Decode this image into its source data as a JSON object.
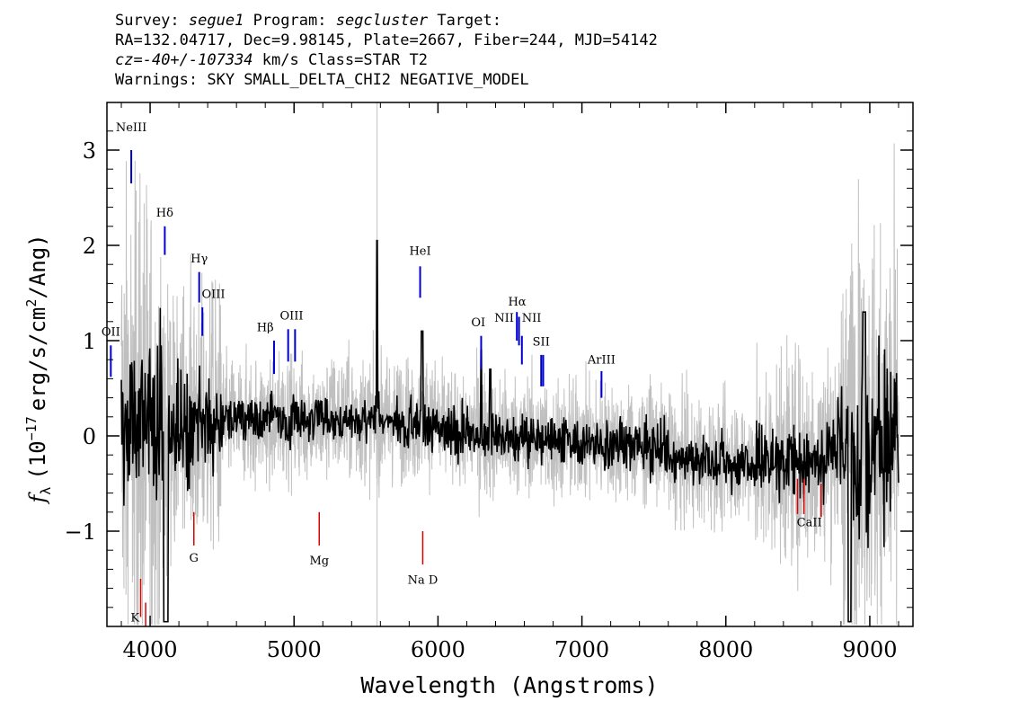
{
  "header": {
    "survey_label": "Survey:",
    "survey": "segue1",
    "program_label": "Program:",
    "program": "segcluster",
    "target_label": "Target:",
    "line2": "RA=132.04717, Dec=9.98145, Plate=2667, Fiber=244, MJD=54142",
    "cz_label": "cz=",
    "cz_value": "-40+/-107334",
    "cz_tail": " km/s Class=STAR T2",
    "warnings": "Warnings: SKY SMALL_DELTA_CHI2 NEGATIVE_MODEL"
  },
  "chart_data": {
    "type": "line",
    "xlabel": "Wavelength (Angstroms)",
    "ylabel_prefix": "f",
    "ylabel_sub": "λ",
    "ylabel_main": "(10",
    "ylabel_exp": "−17",
    "ylabel_rest": "erg/s/cm",
    "ylabel_exp2": "2",
    "ylabel_end": "/Ang)",
    "xlim": [
      3700,
      9300
    ],
    "ylim": [
      -2.0,
      3.5
    ],
    "x_ticks": [
      4000,
      5000,
      6000,
      7000,
      8000,
      9000
    ],
    "x_tick_labels": [
      "4000",
      "5000",
      "6000",
      "7000",
      "8000",
      "9000"
    ],
    "y_ticks": [
      -1,
      0,
      1,
      2,
      3
    ],
    "y_tick_labels": [
      "−1",
      "0",
      "1",
      "2",
      "3"
    ],
    "grid": false,
    "series": [
      {
        "color": "#000000",
        "x_start": 3800,
        "x_end": 9200,
        "y_shape": "flux"
      },
      {
        "color": "#c0c0c0",
        "x_start": 3800,
        "x_end": 9200,
        "y_shape": "error"
      }
    ],
    "line_colors": {
      "flux": "#000000",
      "error": "#c0c0c0",
      "emission": "#0000cc",
      "absorption": "#dd0000"
    },
    "emission_lines": [
      {
        "label": "NeIII",
        "x": 3869
      },
      {
        "label": "OII",
        "x": 3727
      },
      {
        "label": "Hδ",
        "x": 4102
      },
      {
        "label": "Hγ",
        "x": 4341
      },
      {
        "label": "OIII",
        "x": 4363
      },
      {
        "label": "Hβ",
        "x": 4861
      },
      {
        "label": "OIII",
        "x": 4959
      },
      {
        "label": "OIII",
        "x": 5007
      },
      {
        "label": "HeI",
        "x": 5876
      },
      {
        "label": "OI",
        "x": 6300
      },
      {
        "label": "NII",
        "x": 6548
      },
      {
        "label": "Hα",
        "x": 6563
      },
      {
        "label": "NII",
        "x": 6583
      },
      {
        "label": "SII",
        "x": 6717
      },
      {
        "label": "SII",
        "x": 6731
      },
      {
        "label": "ArIII",
        "x": 7136
      }
    ],
    "absorption_lines": [
      {
        "label": "K",
        "x": 3934
      },
      {
        "label": "H",
        "x": 3969
      },
      {
        "label": "G",
        "x": 4304
      },
      {
        "label": "Mg",
        "x": 5175
      },
      {
        "label": "Na D",
        "x": 5894
      },
      {
        "label": "CaII",
        "x": 8498
      },
      {
        "label": "CaII",
        "x": 8542
      },
      {
        "label": "CaII",
        "x": 8662
      }
    ]
  }
}
